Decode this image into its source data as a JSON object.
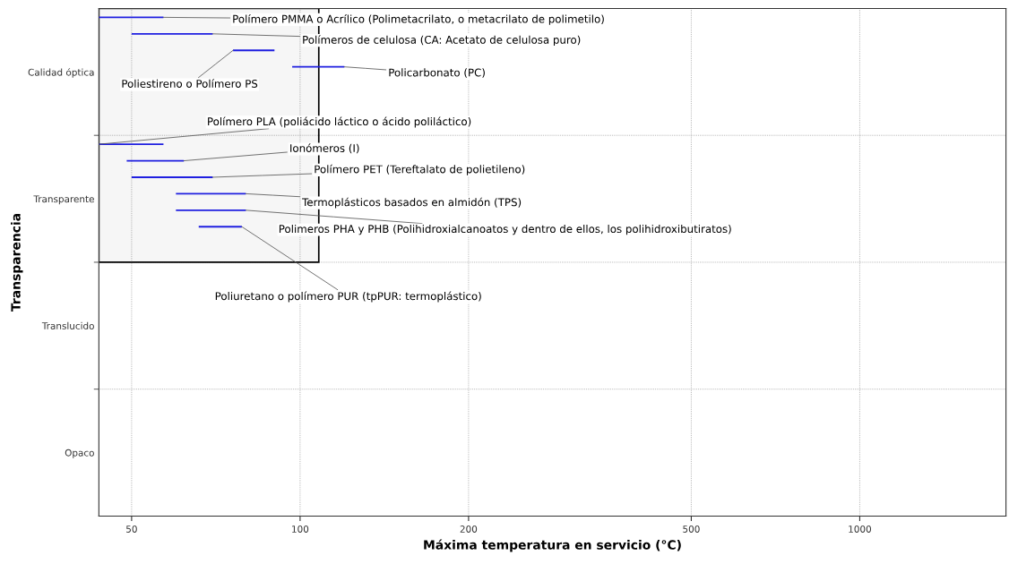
{
  "chart_data": {
    "type": "bar",
    "orientation": "horizontal",
    "xlabel": "Máxima temperatura en servicio (°C)",
    "ylabel": "Transparencia",
    "categories": [
      "Calidad óptica",
      "Transparente",
      "Translucido",
      "Opaco"
    ],
    "log": "x",
    "xlim": [
      43.7,
      1825
    ],
    "xticks": [
      50,
      100,
      200,
      500,
      1000
    ],
    "grid": true,
    "bands": [
      {
        "axis": "x",
        "from": 43.7,
        "to": 108,
        "color": "#000000"
      }
    ],
    "series": [
      {
        "name": "Polímero PMMA o Acrílico (Polimetacrilato, o metacrilato de polimetilo)",
        "color": "#1f1fe0",
        "base": [
          43.7,
          null,
          null,
          null
        ],
        "values": [
          13.3,
          null,
          null,
          null
        ]
      },
      {
        "name": "Polímeros de celulosa (CA: Acetato de celulosa puro)",
        "color": "#1f1fe0",
        "base": [
          50,
          null,
          null,
          null
        ],
        "values": [
          19.8,
          null,
          null,
          null
        ]
      },
      {
        "name": "Poliestireno o Polímero PS",
        "color": "#1f1fe0",
        "base": [
          75.9,
          null,
          null,
          null
        ],
        "values": [
          14.1,
          null,
          null,
          null
        ]
      },
      {
        "name": "Policarbonato (PC)",
        "color": "#1f1fe0",
        "base": [
          96.8,
          null,
          null,
          null
        ],
        "values": [
          23.2,
          null,
          null,
          null
        ]
      },
      {
        "name": "Polímero PLA (poliácido láctico o ácido poliláctico)",
        "color": "#1f1fe0",
        "base": [
          null,
          43.7,
          null,
          null
        ],
        "values": [
          null,
          13.3,
          null,
          null
        ]
      },
      {
        "name": "Ionómeros (I)",
        "color": "#1f1fe0",
        "base": [
          null,
          49,
          null,
          null
        ],
        "values": [
          null,
          13,
          null,
          null
        ]
      },
      {
        "name": "Polímero PET (Tereftalato de polietileno)",
        "color": "#1f1fe0",
        "base": [
          null,
          50,
          null,
          null
        ],
        "values": [
          null,
          19.8,
          null,
          null
        ]
      },
      {
        "name": "Termoplásticos basados en almidón (TPS)",
        "color": "#1f1fe0",
        "base": [
          null,
          60,
          null,
          null
        ],
        "values": [
          null,
          20,
          null,
          null
        ]
      },
      {
        "name": "Polimeros PHA y PHB (Polihidroxialcanoatos y dentro de ellos, los polihidroxibutiratos)",
        "color": "#1f1fe0",
        "base": [
          null,
          60,
          null,
          null
        ],
        "values": [
          null,
          20,
          null,
          null
        ]
      },
      {
        "name": "Poliuretano o polímero PUR (tpPUR: termoplástico)",
        "color": "#1f1fe0",
        "base": [
          null,
          65.9,
          null,
          null
        ],
        "values": [
          null,
          12.8,
          null,
          null
        ]
      }
    ]
  }
}
